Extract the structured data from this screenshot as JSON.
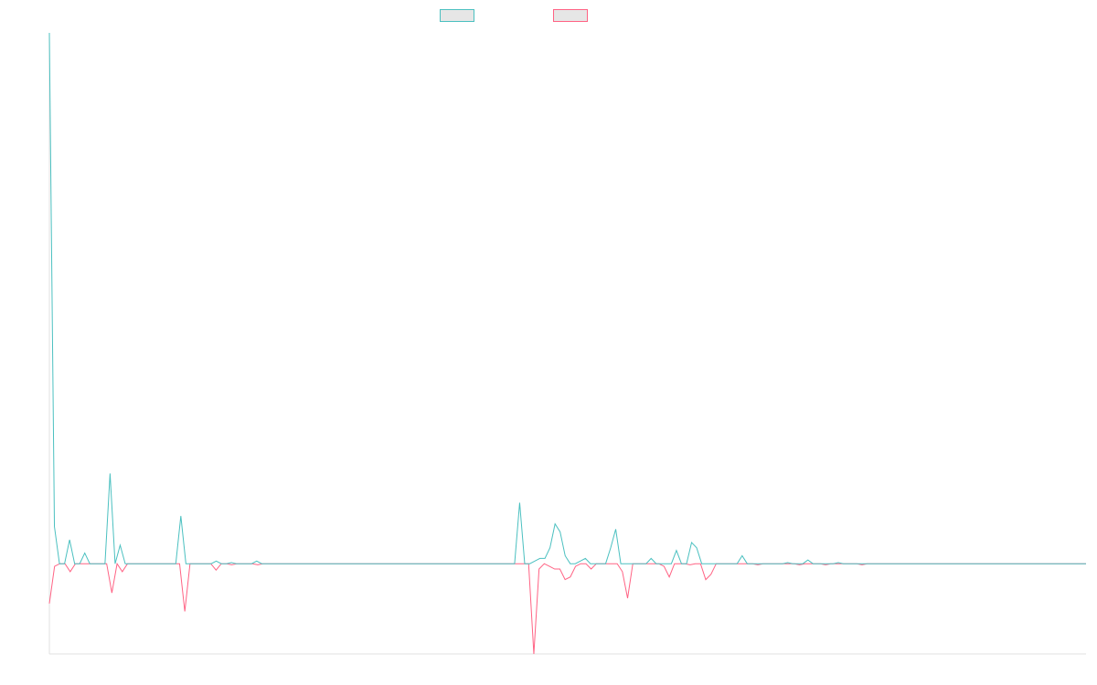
{
  "chart_data": {
    "type": "line",
    "title": "",
    "xlabel": "",
    "ylabel": "",
    "grid": false,
    "legend_position": "top-center",
    "ylim": [
      -1.7,
      10
    ],
    "series": [
      {
        "color": "#4bc0c0",
        "values": [
          10,
          0.7,
          0,
          0,
          0.45,
          0,
          0,
          0.2,
          0,
          0,
          0,
          0,
          1.7,
          0,
          0.35,
          0,
          0,
          0,
          0,
          0,
          0,
          0,
          0,
          0,
          0,
          0,
          0.9,
          0,
          0,
          0,
          0,
          0,
          0,
          0.05,
          0,
          0,
          0.02,
          0,
          0,
          0,
          0,
          0.05,
          0,
          0,
          0,
          0,
          0,
          0,
          0,
          0,
          0,
          0,
          0,
          0,
          0,
          0,
          0,
          0,
          0,
          0,
          0,
          0,
          0,
          0,
          0,
          0,
          0,
          0,
          0,
          0,
          0,
          0,
          0,
          0,
          0,
          0,
          0,
          0,
          0,
          0,
          0,
          0,
          0,
          0,
          0,
          0,
          0,
          0,
          0,
          0,
          0,
          0,
          0,
          1.15,
          0,
          0,
          0.05,
          0.1,
          0.1,
          0.3,
          0.75,
          0.6,
          0.15,
          0,
          0,
          0.05,
          0.1,
          0,
          0,
          0,
          0,
          0.3,
          0.65,
          0,
          0,
          0,
          0,
          0,
          0,
          0.1,
          0,
          0,
          0,
          0,
          0.25,
          0,
          0,
          0.4,
          0.3,
          0,
          0,
          0,
          0,
          0,
          0,
          0,
          0,
          0.15,
          0,
          0,
          0,
          0,
          0,
          0,
          0,
          0,
          0.02,
          0,
          0,
          0,
          0.07,
          0,
          0,
          0,
          0,
          0,
          0.02,
          0,
          0,
          0,
          0,
          0,
          0,
          0,
          0,
          0,
          0,
          0,
          0,
          0,
          0,
          0,
          0,
          0,
          0,
          0,
          0,
          0,
          0,
          0,
          0,
          0,
          0,
          0,
          0,
          0,
          0,
          0,
          0,
          0,
          0,
          0,
          0,
          0,
          0,
          0,
          0,
          0,
          0,
          0,
          0,
          0,
          0,
          0,
          0,
          0
        ]
      },
      {
        "color": "#ff6384",
        "values": [
          -0.75,
          -0.05,
          0,
          0,
          -0.15,
          0,
          0,
          0,
          0,
          0,
          0,
          0,
          -0.55,
          0,
          -0.15,
          0,
          0,
          0,
          0,
          0,
          0,
          0,
          0,
          0,
          0,
          0,
          -0.9,
          0,
          0,
          0,
          0,
          0,
          -0.12,
          0,
          0,
          -0.02,
          0,
          0,
          0,
          0,
          -0.02,
          0,
          0,
          0,
          0,
          0,
          0,
          0,
          0,
          0,
          0,
          0,
          0,
          0,
          0,
          0,
          0,
          0,
          0,
          0,
          0,
          0,
          0,
          0,
          0,
          0,
          0,
          0,
          0,
          0,
          0,
          0,
          0,
          0,
          0,
          0,
          0,
          0,
          0,
          0,
          0,
          0,
          0,
          0,
          0,
          0,
          0,
          0,
          0,
          0,
          0,
          0,
          0,
          -1.7,
          -0.1,
          0,
          -0.05,
          -0.1,
          -0.1,
          -0.3,
          -0.25,
          -0.05,
          0,
          0,
          -0.1,
          0,
          0,
          0,
          0,
          0,
          -0.15,
          -0.65,
          0,
          0,
          0,
          0,
          0,
          0,
          -0.05,
          -0.25,
          0,
          0,
          0,
          -0.02,
          0,
          0,
          -0.3,
          -0.2,
          0,
          0,
          0,
          0,
          0,
          0,
          0,
          0,
          -0.02,
          0,
          0,
          0,
          0,
          0,
          0,
          0,
          -0.02,
          0,
          0,
          0,
          0,
          -0.02,
          0,
          0,
          0,
          0,
          0,
          0,
          -0.02,
          0,
          0,
          0,
          0,
          0,
          0,
          0,
          0,
          0,
          0,
          0,
          0,
          0,
          0,
          0,
          0,
          0,
          0,
          0,
          0,
          0,
          0,
          0,
          0,
          0,
          0,
          0,
          0,
          0,
          0,
          0,
          0,
          0,
          0,
          0,
          0,
          0,
          0,
          0,
          0,
          0,
          0,
          0
        ]
      }
    ]
  }
}
